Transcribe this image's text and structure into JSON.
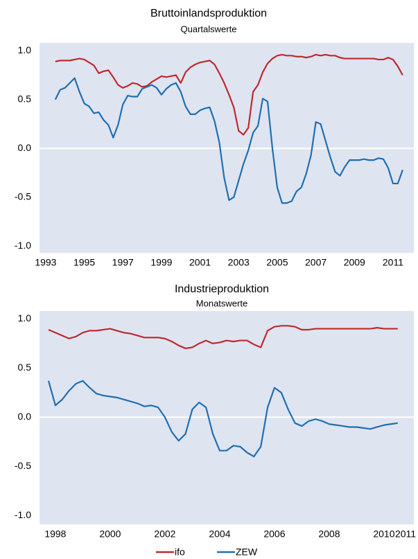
{
  "chart_data": [
    {
      "type": "line",
      "title": "Bruttoinlandsproduktion",
      "subtitle": "Quartalswerte",
      "x": [
        1993.5,
        1993.75,
        1994,
        1994.25,
        1994.5,
        1994.75,
        1995,
        1995.25,
        1995.5,
        1995.75,
        1996,
        1996.25,
        1996.5,
        1996.75,
        1997,
        1997.25,
        1997.5,
        1997.75,
        1998,
        1998.25,
        1998.5,
        1998.75,
        1999,
        1999.25,
        1999.5,
        1999.75,
        2000,
        2000.25,
        2000.5,
        2000.75,
        2001,
        2001.25,
        2001.5,
        2001.75,
        2002,
        2002.25,
        2002.5,
        2002.75,
        2003,
        2003.25,
        2003.5,
        2003.75,
        2004,
        2004.25,
        2004.5,
        2004.75,
        2005,
        2005.25,
        2005.5,
        2005.75,
        2006,
        2006.25,
        2006.5,
        2006.75,
        2007,
        2007.25,
        2007.5,
        2007.75,
        2008,
        2008.25,
        2008.5,
        2008.75,
        2009,
        2009.25,
        2009.5,
        2009.75,
        2010,
        2010.25,
        2010.5,
        2010.75,
        2011,
        2011.25,
        2011.5
      ],
      "series": [
        {
          "name": "ifo",
          "color": "#c0282d",
          "values": [
            0.89,
            0.9,
            0.9,
            0.9,
            0.91,
            0.92,
            0.91,
            0.88,
            0.85,
            0.77,
            0.79,
            0.8,
            0.73,
            0.65,
            0.62,
            0.64,
            0.67,
            0.66,
            0.63,
            0.64,
            0.68,
            0.71,
            0.74,
            0.73,
            0.74,
            0.75,
            0.67,
            0.78,
            0.83,
            0.86,
            0.88,
            0.89,
            0.9,
            0.86,
            0.77,
            0.67,
            0.55,
            0.42,
            0.18,
            0.14,
            0.21,
            0.58,
            0.65,
            0.78,
            0.87,
            0.92,
            0.95,
            0.96,
            0.95,
            0.95,
            0.94,
            0.94,
            0.93,
            0.94,
            0.96,
            0.95,
            0.96,
            0.95,
            0.95,
            0.93,
            0.92,
            0.92,
            0.92,
            0.92,
            0.92,
            0.92,
            0.92,
            0.91,
            0.91,
            0.93,
            0.91,
            0.84,
            0.75
          ]
        },
        {
          "name": "ZEW",
          "color": "#1f6fb0",
          "values": [
            0.5,
            0.6,
            0.62,
            0.67,
            0.72,
            0.58,
            0.46,
            0.43,
            0.36,
            0.37,
            0.29,
            0.24,
            0.11,
            0.24,
            0.45,
            0.54,
            0.53,
            0.53,
            0.61,
            0.63,
            0.65,
            0.62,
            0.55,
            0.61,
            0.65,
            0.67,
            0.58,
            0.43,
            0.35,
            0.35,
            0.39,
            0.41,
            0.42,
            0.28,
            0.06,
            -0.3,
            -0.53,
            -0.5,
            -0.33,
            -0.16,
            -0.02,
            0.16,
            0.23,
            0.51,
            0.48,
            0.0,
            -0.4,
            -0.56,
            -0.56,
            -0.54,
            -0.44,
            -0.4,
            -0.26,
            -0.07,
            0.27,
            0.25,
            0.08,
            -0.09,
            -0.24,
            -0.28,
            -0.19,
            -0.12,
            -0.12,
            -0.12,
            -0.11,
            -0.12,
            -0.12,
            -0.1,
            -0.11,
            -0.2,
            -0.36,
            -0.36,
            -0.22
          ]
        }
      ],
      "xlim": [
        1992.68,
        2012.08
      ],
      "xticks": [
        1993,
        1995,
        1997,
        1999,
        2001,
        2003,
        2005,
        2007,
        2009,
        2011
      ],
      "ylim": [
        -1.07,
        1.08
      ],
      "yticks": [
        {
          "value": 1,
          "label": "1.0"
        },
        0.5,
        {
          "value": 0,
          "label": "0.0"
        },
        -0.5,
        {
          "value": -1,
          "label": "-1.0"
        }
      ],
      "zero_line": true
    },
    {
      "type": "line",
      "title": "Industrieproduktion",
      "subtitle": "Monatswerte",
      "x": [
        1997.75,
        1998,
        1998.25,
        1998.5,
        1998.75,
        1999,
        1999.25,
        1999.5,
        1999.75,
        2000,
        2000.25,
        2000.5,
        2000.75,
        2001,
        2001.25,
        2001.5,
        2001.75,
        2002,
        2002.25,
        2002.5,
        2002.75,
        2003,
        2003.25,
        2003.5,
        2003.75,
        2004,
        2004.25,
        2004.5,
        2004.75,
        2005,
        2005.25,
        2005.5,
        2005.75,
        2006,
        2006.25,
        2006.5,
        2006.75,
        2007,
        2007.25,
        2007.5,
        2007.75,
        2008,
        2008.25,
        2008.5,
        2008.75,
        2009,
        2009.25,
        2009.5,
        2009.75,
        2010,
        2010.25,
        2010.5
      ],
      "series": [
        {
          "name": "ifo",
          "color": "#c0282d",
          "values": [
            0.89,
            0.86,
            0.83,
            0.8,
            0.82,
            0.86,
            0.88,
            0.88,
            0.89,
            0.9,
            0.88,
            0.86,
            0.85,
            0.83,
            0.81,
            0.81,
            0.81,
            0.8,
            0.77,
            0.73,
            0.7,
            0.71,
            0.75,
            0.78,
            0.75,
            0.76,
            0.78,
            0.77,
            0.78,
            0.78,
            0.74,
            0.71,
            0.88,
            0.92,
            0.93,
            0.93,
            0.92,
            0.89,
            0.89,
            0.9,
            0.9,
            0.9,
            0.9,
            0.9,
            0.9,
            0.9,
            0.9,
            0.9,
            0.91,
            0.9,
            0.9,
            0.9
          ]
        },
        {
          "name": "ZEW",
          "color": "#1f6fb0",
          "values": [
            0.37,
            0.12,
            0.18,
            0.27,
            0.34,
            0.37,
            0.3,
            0.24,
            0.22,
            0.21,
            0.2,
            0.18,
            0.16,
            0.14,
            0.11,
            0.12,
            0.1,
            0.0,
            -0.15,
            -0.24,
            -0.17,
            0.08,
            0.15,
            0.1,
            -0.17,
            -0.34,
            -0.34,
            -0.29,
            -0.3,
            -0.36,
            -0.4,
            -0.3,
            0.1,
            0.3,
            0.25,
            0.08,
            -0.06,
            -0.09,
            -0.04,
            -0.02,
            -0.04,
            -0.07,
            -0.08,
            -0.09,
            -0.1,
            -0.1,
            -0.11,
            -0.12,
            -0.1,
            -0.08,
            -0.07,
            -0.06
          ]
        }
      ],
      "xlim": [
        1997.42,
        2011.09
      ],
      "xticks": [
        1998,
        2000,
        2002,
        2004,
        2006,
        2008,
        2010,
        2011
      ],
      "ylim": [
        -1.09,
        1.08
      ],
      "yticks": [
        {
          "value": 1,
          "label": "1.0"
        },
        0.5,
        {
          "value": 0,
          "label": "0.0"
        },
        -0.5,
        {
          "value": -1,
          "label": "-1.0"
        }
      ],
      "zero_line": true
    }
  ]
}
